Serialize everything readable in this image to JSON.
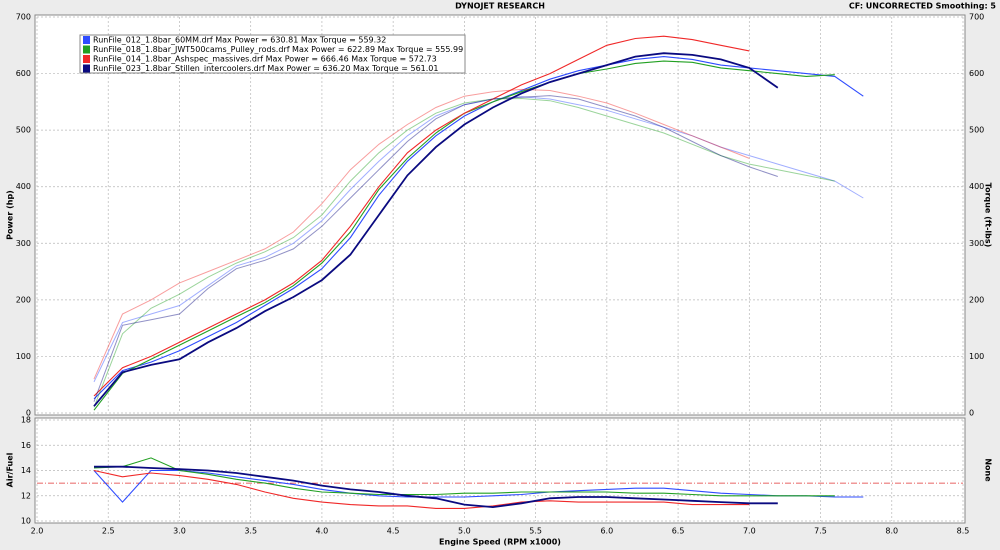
{
  "chart_data": [
    {
      "type": "line",
      "title": "DYNOJET RESEARCH",
      "subtitle": "CF: UNCORRECTED  Smoothing: 5",
      "ylabel": "Power (hp)",
      "y2label": "Torque (ft-lbs)",
      "x": [
        2.4,
        2.6,
        2.8,
        3.0,
        3.2,
        3.4,
        3.6,
        3.8,
        4.0,
        4.2,
        4.4,
        4.6,
        4.8,
        5.0,
        5.2,
        5.4,
        5.6,
        5.8,
        6.0,
        6.2,
        6.4,
        6.6,
        6.8,
        7.0,
        7.2,
        7.4,
        7.6,
        7.8
      ],
      "xlim": [
        2,
        8.5
      ],
      "ylim": [
        0,
        700
      ],
      "yticks": [
        0,
        100,
        200,
        300,
        400,
        500,
        600,
        700
      ],
      "y2lim": [
        0,
        700
      ],
      "y2ticks": [
        0,
        100,
        200,
        300,
        400,
        500,
        600,
        700
      ],
      "grid": true,
      "series": [
        {
          "name": "RunFile_012_1.8bar_60MM.drf Max Power = 630.81 Max Torque = 559.32",
          "color": "#2f4cff",
          "values": [
            25,
            75,
            90,
            110,
            135,
            160,
            190,
            220,
            255,
            310,
            385,
            445,
            490,
            525,
            550,
            570,
            590,
            605,
            615,
            625,
            630,
            625,
            615,
            610,
            605,
            600,
            595,
            560
          ],
          "torque": {
            "axis": "y2",
            "values": [
              55,
              160,
              175,
              190,
              225,
              260,
              275,
              300,
              340,
              395,
              445,
              490,
              525,
              545,
              555,
              559,
              555,
              545,
              535,
              520,
              505,
              490,
              470,
              455,
              440,
              425,
              410,
              380
            ]
          }
        },
        {
          "name": "RunFile_018_1.8bar_JWT500cams_Pulley_rods.drf Max Power = 622.89 Max Torque = 555.99",
          "color": "#22a022",
          "values": [
            5,
            70,
            95,
            120,
            145,
            170,
            195,
            225,
            265,
            320,
            395,
            450,
            495,
            530,
            550,
            568,
            585,
            600,
            608,
            618,
            622,
            620,
            610,
            605,
            600,
            595,
            598,
            null
          ],
          "torque": {
            "axis": "y2",
            "values": [
              10,
              140,
              185,
              210,
              240,
              265,
              285,
              310,
              350,
              410,
              460,
              500,
              530,
              548,
              555,
              556,
              552,
              540,
              525,
              510,
              495,
              475,
              455,
              440,
              430,
              420,
              410,
              null
            ]
          }
        },
        {
          "name": "RunFile_014_1.8bar_Ashspec_massives.drf Max Power = 666.46 Max Torque = 572.73",
          "color": "#f02828",
          "values": [
            30,
            80,
            100,
            125,
            150,
            175,
            200,
            230,
            270,
            330,
            400,
            460,
            500,
            530,
            555,
            580,
            600,
            625,
            650,
            662,
            666,
            660,
            650,
            640,
            null,
            null,
            null,
            null
          ],
          "torque": {
            "axis": "y2",
            "values": [
              60,
              175,
              200,
              230,
              250,
              270,
              290,
              320,
              370,
              430,
              475,
              510,
              540,
              560,
              568,
              572,
              570,
              560,
              548,
              530,
              510,
              490,
              470,
              450,
              null,
              null,
              null,
              null
            ]
          }
        },
        {
          "name": "RunFile_023_1.8bar_Stillen_intercoolers.drf Max Power = 636.20 Max Torque = 561.01",
          "color": "#0a0a80",
          "values": [
            12,
            72,
            85,
            95,
            125,
            150,
            180,
            205,
            235,
            280,
            350,
            420,
            470,
            510,
            540,
            565,
            585,
            600,
            615,
            630,
            636,
            633,
            625,
            610,
            575,
            null,
            null,
            null
          ],
          "torque": {
            "axis": "y2",
            "values": [
              20,
              155,
              165,
              175,
              220,
              255,
              270,
              290,
              330,
              380,
              430,
              480,
              520,
              545,
              555,
              558,
              561,
              555,
              540,
              525,
              505,
              480,
              455,
              435,
              418,
              null,
              null,
              null
            ]
          }
        }
      ]
    },
    {
      "type": "line",
      "ylabel": "Air/Fuel",
      "y2label": "None",
      "xlabel": "Engine Speed (RPM x1000)",
      "x": [
        2.4,
        2.6,
        2.8,
        3.0,
        3.2,
        3.4,
        3.6,
        3.8,
        4.0,
        4.2,
        4.4,
        4.6,
        4.8,
        5.0,
        5.2,
        5.4,
        5.6,
        5.8,
        6.0,
        6.2,
        6.4,
        6.6,
        6.8,
        7.0,
        7.2,
        7.4,
        7.6,
        7.8
      ],
      "xlim": [
        2,
        8.5
      ],
      "ylim": [
        10,
        18
      ],
      "yticks": [
        10,
        12,
        14,
        16,
        18
      ],
      "target_line": 13,
      "grid": true,
      "xticks": [
        {
          "value": 2,
          "label": "2.0"
        },
        2.5,
        {
          "value": 3,
          "label": "3.0"
        },
        3.5,
        {
          "value": 4,
          "label": "4.0"
        },
        4.5,
        {
          "value": 5,
          "label": "5.0"
        },
        5.5,
        {
          "value": 6,
          "label": "6.0"
        },
        6.5,
        {
          "value": 7,
          "label": "7.0"
        },
        7.5,
        {
          "value": 8,
          "label": "8.0"
        },
        8.5
      ],
      "series": [
        {
          "color": "#2f4cff",
          "values": [
            14.0,
            11.5,
            14.0,
            14.0,
            13.8,
            13.5,
            13.2,
            12.9,
            12.5,
            12.2,
            12.0,
            11.9,
            11.9,
            11.9,
            12.0,
            12.1,
            12.3,
            12.4,
            12.5,
            12.6,
            12.6,
            12.4,
            12.2,
            12.1,
            12.0,
            12.0,
            11.9,
            11.9
          ]
        },
        {
          "color": "#22a022",
          "values": [
            14.2,
            14.3,
            15.0,
            14.0,
            13.7,
            13.3,
            13.0,
            12.6,
            12.3,
            12.2,
            12.1,
            12.1,
            12.1,
            12.2,
            12.2,
            12.3,
            12.3,
            12.3,
            12.3,
            12.2,
            12.2,
            12.1,
            12.0,
            12.0,
            12.0,
            12.0,
            12.0,
            null
          ]
        },
        {
          "color": "#f02828",
          "values": [
            14.0,
            13.5,
            13.8,
            13.6,
            13.3,
            12.9,
            12.3,
            11.8,
            11.5,
            11.3,
            11.2,
            11.2,
            11.0,
            11.0,
            11.2,
            11.5,
            11.6,
            11.5,
            11.5,
            11.5,
            11.5,
            11.3,
            11.3,
            11.3,
            null,
            null,
            null,
            null
          ]
        },
        {
          "color": "#0a0a80",
          "values": [
            14.3,
            14.3,
            14.2,
            14.1,
            14.0,
            13.8,
            13.5,
            13.2,
            12.8,
            12.5,
            12.3,
            12.0,
            11.8,
            11.3,
            11.1,
            11.4,
            11.8,
            11.9,
            11.9,
            11.8,
            11.7,
            11.6,
            11.5,
            11.4,
            11.4,
            null,
            null,
            null
          ]
        }
      ]
    }
  ]
}
